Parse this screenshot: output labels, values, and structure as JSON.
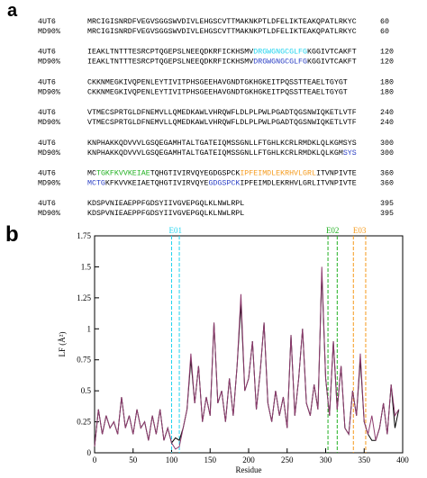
{
  "panel_a": {
    "label": "a",
    "blocks": [
      {
        "rows": [
          {
            "name": "4UT6",
            "segments": [
              {
                "text": "MRCIGISNRDFVEGVSGGSWVDIVLEHGSCVTTMAKNKPTLDFELIKTEAKQPATLRKYC",
                "color": "#000000"
              }
            ],
            "end": "60"
          },
          {
            "name": "MD90%",
            "segments": [
              {
                "text": "MRCIGISNRDFVEGVSGGSWVDIVLEHGSCVTTMAKNKPTLDFELIKTEAKQPATLRKYC",
                "color": "#000000"
              }
            ],
            "end": "60"
          }
        ]
      },
      {
        "rows": [
          {
            "name": "4UT6",
            "segments": [
              {
                "text": "IEAKLTNTTTESRCPTQGEPSLNEEQDKRFICKHSMV",
                "color": "#000000"
              },
              {
                "text": "DRGWGNGCGLFG",
                "color": "#22d3ee"
              },
              {
                "text": "KGGIVTCAKFT",
                "color": "#000000"
              }
            ],
            "end": "120"
          },
          {
            "name": "MD90%",
            "segments": [
              {
                "text": "IEAKLTNTTTESRCPTQGEPSLNEEQDKRFICKHSMV",
                "color": "#000000"
              },
              {
                "text": "DRGWGNGCGLFG",
                "color": "#2b3fc4"
              },
              {
                "text": "KGGIVTCAKFT",
                "color": "#000000"
              }
            ],
            "end": "120"
          }
        ]
      },
      {
        "rows": [
          {
            "name": "4UT6",
            "segments": [
              {
                "text": "CKKNMEGKIVQPENLEYTIVITPHSGEEHAVGNDTGKHGKEITPQSSTTEAELTGYGT",
                "color": "#000000"
              }
            ],
            "end": "180"
          },
          {
            "name": "MD90%",
            "segments": [
              {
                "text": "CKKNMEGKIVQPENLEYTIVITPHSGEEHAVGNDTGKHGKEITPQSSTTEAELTGYGT",
                "color": "#000000"
              }
            ],
            "end": "180"
          }
        ]
      },
      {
        "rows": [
          {
            "name": "4UT6",
            "segments": [
              {
                "text": "VTMECSPRTGLDFNEMVLLQMEDKAWLVHRQWFLDLPLPWLPGADTQGSNWIQKETLVTF",
                "color": "#000000"
              }
            ],
            "end": "240"
          },
          {
            "name": "MD90%",
            "segments": [
              {
                "text": "VTMECSPRTGLDFNEMVLLQMEDKAWLVHRQWFLDLPLPWLPGADTQGSNWIQKETLVTF",
                "color": "#000000"
              }
            ],
            "end": "240"
          }
        ]
      },
      {
        "rows": [
          {
            "name": "4UT6",
            "segments": [
              {
                "text": "KNPHAKKQDVVVLGSQEGAMHTALTGATEIQMSSGNLLFTGHLKCRLRMDKLQLKGMSYS",
                "color": "#000000"
              }
            ],
            "end": "300"
          },
          {
            "name": "MD90%",
            "segments": [
              {
                "text": "KNPHAKKQDVVVLGSQEGAMHTALTGATEIQMSSGNLLFTGHLKCRLRMDKLQLKGM",
                "color": "#000000"
              },
              {
                "text": "SYS",
                "color": "#2b3fc4"
              }
            ],
            "end": "300"
          }
        ]
      },
      {
        "rows": [
          {
            "name": "4UT6",
            "segments": [
              {
                "text": "MC",
                "color": "#000000"
              },
              {
                "text": "TGKFKVVKEIAE",
                "color": "#22b022"
              },
              {
                "text": "TQHGTIVIRVQYEGDGSPCK",
                "color": "#000000"
              },
              {
                "text": "IPFEIMDLEKRHVLGRL",
                "color": "#f59a1b"
              },
              {
                "text": "ITVNPIVTE",
                "color": "#000000"
              }
            ],
            "end": "360"
          },
          {
            "name": "MD90%",
            "segments": [
              {
                "text": "MCTG",
                "color": "#2b3fc4"
              },
              {
                "text": "KFKVVKEIAETQHGTIVIRVQYE",
                "color": "#000000"
              },
              {
                "text": "GDGSPCK",
                "color": "#2b3fc4"
              },
              {
                "text": "IPFEIMDLEKRHVLGRLITVNPIVTE",
                "color": "#000000"
              }
            ],
            "end": "360"
          }
        ]
      },
      {
        "rows": [
          {
            "name": "4UT6",
            "segments": [
              {
                "text": "KDSPVNIEAEPPFGDSYIIVGVEPGQLKLNWLRPL",
                "color": "#000000"
              }
            ],
            "end": "395"
          },
          {
            "name": "MD90%",
            "segments": [
              {
                "text": "KDSPVNIEAEPPFGDSYIIVGVEPGQLKLNWLRPL",
                "color": "#000000"
              }
            ],
            "end": "395"
          }
        ]
      }
    ]
  },
  "panel_b_label": "b",
  "chart_data": {
    "type": "line",
    "x_label": "Residue",
    "y_label": "LF (Å²)",
    "xlim": [
      0,
      400
    ],
    "xticks": [
      0,
      50,
      100,
      150,
      200,
      250,
      300,
      350,
      400
    ],
    "ylim": [
      0,
      1.75
    ],
    "yticks": [
      0,
      0.25,
      0.5,
      0.75,
      1,
      1.25,
      1.5,
      1.75
    ],
    "x": [
      0,
      5,
      10,
      15,
      20,
      25,
      30,
      35,
      40,
      45,
      50,
      55,
      60,
      65,
      70,
      75,
      80,
      85,
      90,
      95,
      100,
      105,
      110,
      115,
      120,
      125,
      130,
      135,
      140,
      145,
      150,
      155,
      160,
      165,
      170,
      175,
      180,
      185,
      190,
      195,
      200,
      205,
      210,
      215,
      220,
      225,
      230,
      235,
      240,
      245,
      250,
      255,
      260,
      265,
      270,
      275,
      280,
      285,
      290,
      295,
      300,
      305,
      310,
      315,
      320,
      325,
      330,
      335,
      340,
      345,
      350,
      355,
      360,
      365,
      370,
      375,
      380,
      385,
      390,
      395
    ],
    "series": [
      {
        "color": "#000000",
        "values": [
          0.05,
          0.35,
          0.15,
          0.3,
          0.2,
          0.25,
          0.15,
          0.45,
          0.2,
          0.3,
          0.15,
          0.35,
          0.2,
          0.25,
          0.1,
          0.3,
          0.15,
          0.35,
          0.1,
          0.2,
          0.08,
          0.12,
          0.1,
          0.2,
          0.35,
          0.75,
          0.4,
          0.7,
          0.25,
          0.45,
          0.3,
          1.05,
          0.4,
          0.5,
          0.25,
          0.6,
          0.3,
          0.7,
          1.2,
          0.5,
          0.6,
          0.9,
          0.35,
          0.65,
          1.05,
          0.4,
          0.25,
          0.5,
          0.3,
          0.45,
          0.2,
          0.95,
          0.3,
          0.6,
          1.0,
          0.4,
          0.3,
          0.55,
          0.35,
          1.45,
          0.6,
          0.3,
          0.9,
          0.35,
          0.7,
          0.2,
          0.15,
          0.5,
          0.3,
          0.75,
          0.25,
          0.15,
          0.1,
          0.1,
          0.2,
          0.4,
          0.15,
          0.55,
          0.2,
          0.35
        ]
      },
      {
        "color": "#8e3b6e",
        "values": [
          0.05,
          0.35,
          0.15,
          0.3,
          0.2,
          0.25,
          0.15,
          0.45,
          0.2,
          0.3,
          0.15,
          0.35,
          0.2,
          0.25,
          0.1,
          0.3,
          0.15,
          0.35,
          0.1,
          0.2,
          0.08,
          0.03,
          0.05,
          0.2,
          0.35,
          0.8,
          0.4,
          0.7,
          0.25,
          0.45,
          0.3,
          1.05,
          0.4,
          0.5,
          0.25,
          0.6,
          0.3,
          0.7,
          1.28,
          0.5,
          0.6,
          0.9,
          0.35,
          0.65,
          1.05,
          0.4,
          0.25,
          0.5,
          0.3,
          0.45,
          0.2,
          0.95,
          0.3,
          0.6,
          1.0,
          0.4,
          0.3,
          0.55,
          0.35,
          1.5,
          0.6,
          0.3,
          0.9,
          0.35,
          0.7,
          0.2,
          0.15,
          0.5,
          0.3,
          0.8,
          0.25,
          0.15,
          0.3,
          0.1,
          0.2,
          0.4,
          0.15,
          0.55,
          0.3,
          0.35
        ]
      }
    ],
    "annotations": [
      {
        "label": "E01",
        "color": "#22d3ee",
        "x": [
          100,
          110
        ]
      },
      {
        "label": "E02",
        "color": "#22b022",
        "x": [
          303,
          315
        ]
      },
      {
        "label": "E03",
        "color": "#f59a1b",
        "x": [
          336,
          352
        ]
      }
    ]
  }
}
